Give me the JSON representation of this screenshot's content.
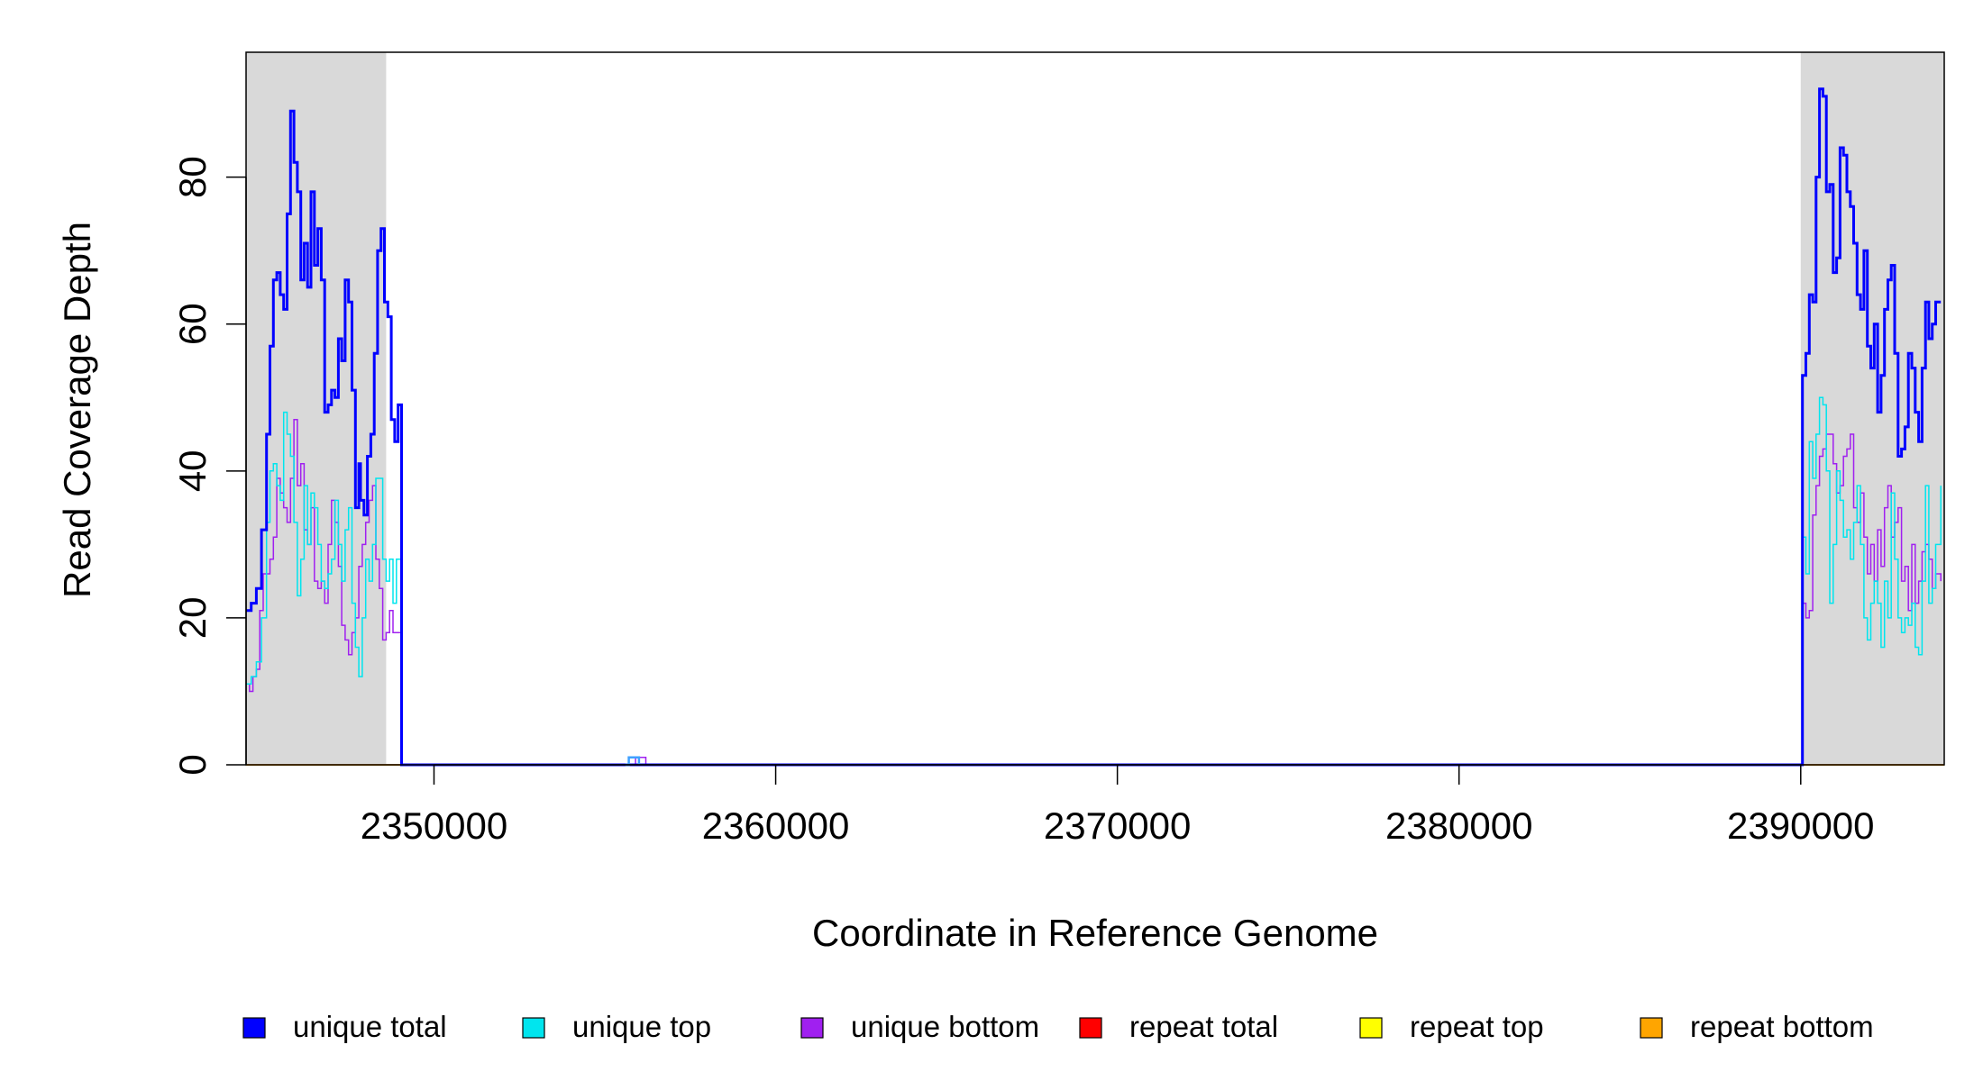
{
  "chart_data": {
    "type": "line",
    "title": "",
    "xlabel": "Coordinate in Reference Genome",
    "ylabel": "Read Coverage Depth",
    "xlim": [
      2344500,
      2394200
    ],
    "ylim": [
      0,
      97
    ],
    "x_ticks": [
      2350000,
      2360000,
      2370000,
      2380000,
      2390000
    ],
    "x_tick_labels": [
      "2350000",
      "2360000",
      "2370000",
      "2380000",
      "2390000"
    ],
    "y_ticks": [
      0,
      20,
      40,
      60,
      80
    ],
    "y_tick_labels": [
      "0",
      "20",
      "40",
      "60",
      "80"
    ],
    "grid": false,
    "legend_position": "bottom",
    "shaded_regions": [
      {
        "x_start": 2344500,
        "x_end": 2348600,
        "color": "#d9d9d9"
      },
      {
        "x_start": 2390000,
        "x_end": 2394200,
        "color": "#d9d9d9"
      }
    ],
    "series": [
      {
        "name": "unique total",
        "color": "#0000ff",
        "width": 3,
        "points": [
          [
            2344500,
            21
          ],
          [
            2344650,
            22
          ],
          [
            2344800,
            24
          ],
          [
            2344950,
            32
          ],
          [
            2345100,
            45
          ],
          [
            2345200,
            57
          ],
          [
            2345300,
            66
          ],
          [
            2345400,
            67
          ],
          [
            2345500,
            64
          ],
          [
            2345600,
            62
          ],
          [
            2345700,
            75
          ],
          [
            2345800,
            89
          ],
          [
            2345900,
            82
          ],
          [
            2346000,
            78
          ],
          [
            2346100,
            66
          ],
          [
            2346200,
            71
          ],
          [
            2346300,
            65
          ],
          [
            2346400,
            78
          ],
          [
            2346500,
            68
          ],
          [
            2346600,
            73
          ],
          [
            2346700,
            66
          ],
          [
            2346800,
            48
          ],
          [
            2346900,
            49
          ],
          [
            2347000,
            51
          ],
          [
            2347100,
            50
          ],
          [
            2347200,
            58
          ],
          [
            2347300,
            55
          ],
          [
            2347400,
            66
          ],
          [
            2347500,
            63
          ],
          [
            2347600,
            51
          ],
          [
            2347700,
            35
          ],
          [
            2347800,
            41
          ],
          [
            2347850,
            36
          ],
          [
            2347950,
            34
          ],
          [
            2348050,
            42
          ],
          [
            2348150,
            45
          ],
          [
            2348250,
            56
          ],
          [
            2348350,
            70
          ],
          [
            2348450,
            73
          ],
          [
            2348550,
            63
          ],
          [
            2348650,
            61
          ],
          [
            2348750,
            47
          ],
          [
            2348850,
            44
          ],
          [
            2348950,
            49
          ],
          [
            2349050,
            0
          ],
          [
            2390000,
            0
          ],
          [
            2390050,
            53
          ],
          [
            2390150,
            56
          ],
          [
            2390250,
            64
          ],
          [
            2390350,
            63
          ],
          [
            2390450,
            80
          ],
          [
            2390550,
            92
          ],
          [
            2390650,
            91
          ],
          [
            2390750,
            78
          ],
          [
            2390850,
            79
          ],
          [
            2390950,
            67
          ],
          [
            2391050,
            69
          ],
          [
            2391150,
            84
          ],
          [
            2391250,
            83
          ],
          [
            2391350,
            78
          ],
          [
            2391450,
            76
          ],
          [
            2391550,
            71
          ],
          [
            2391650,
            64
          ],
          [
            2391750,
            62
          ],
          [
            2391850,
            70
          ],
          [
            2391950,
            57
          ],
          [
            2392050,
            54
          ],
          [
            2392150,
            60
          ],
          [
            2392250,
            48
          ],
          [
            2392350,
            53
          ],
          [
            2392450,
            62
          ],
          [
            2392550,
            66
          ],
          [
            2392650,
            68
          ],
          [
            2392750,
            56
          ],
          [
            2392850,
            42
          ],
          [
            2392950,
            43
          ],
          [
            2393050,
            46
          ],
          [
            2393150,
            56
          ],
          [
            2393250,
            54
          ],
          [
            2393350,
            48
          ],
          [
            2393450,
            44
          ],
          [
            2393550,
            54
          ],
          [
            2393650,
            63
          ],
          [
            2393750,
            58
          ],
          [
            2393850,
            60
          ],
          [
            2393950,
            63
          ],
          [
            2394100,
            63
          ]
        ]
      },
      {
        "name": "unique top",
        "color": "#00e5ee",
        "width": 1.5,
        "points": [
          [
            2344500,
            11
          ],
          [
            2344650,
            12
          ],
          [
            2344800,
            14
          ],
          [
            2344950,
            20
          ],
          [
            2345100,
            33
          ],
          [
            2345200,
            40
          ],
          [
            2345300,
            41
          ],
          [
            2345400,
            38
          ],
          [
            2345500,
            36
          ],
          [
            2345600,
            48
          ],
          [
            2345700,
            45
          ],
          [
            2345800,
            42
          ],
          [
            2345900,
            33
          ],
          [
            2346000,
            23
          ],
          [
            2346100,
            28
          ],
          [
            2346200,
            38
          ],
          [
            2346300,
            30
          ],
          [
            2346400,
            37
          ],
          [
            2346500,
            35
          ],
          [
            2346600,
            30
          ],
          [
            2346700,
            25
          ],
          [
            2346800,
            24
          ],
          [
            2346900,
            26
          ],
          [
            2347000,
            28
          ],
          [
            2347100,
            36
          ],
          [
            2347200,
            30
          ],
          [
            2347300,
            25
          ],
          [
            2347400,
            32
          ],
          [
            2347500,
            35
          ],
          [
            2347600,
            22
          ],
          [
            2347700,
            16
          ],
          [
            2347800,
            12
          ],
          [
            2347900,
            20
          ],
          [
            2348000,
            28
          ],
          [
            2348100,
            25
          ],
          [
            2348200,
            30
          ],
          [
            2348300,
            39
          ],
          [
            2348400,
            39
          ],
          [
            2348500,
            28
          ],
          [
            2348600,
            25
          ],
          [
            2348700,
            28
          ],
          [
            2348800,
            22
          ],
          [
            2348900,
            28
          ],
          [
            2349050,
            0
          ],
          [
            2390000,
            0
          ],
          [
            2390050,
            31
          ],
          [
            2390150,
            26
          ],
          [
            2390250,
            44
          ],
          [
            2390350,
            39
          ],
          [
            2390450,
            45
          ],
          [
            2390550,
            50
          ],
          [
            2390650,
            49
          ],
          [
            2390750,
            40
          ],
          [
            2390850,
            22
          ],
          [
            2390950,
            30
          ],
          [
            2391050,
            40
          ],
          [
            2391150,
            36
          ],
          [
            2391250,
            31
          ],
          [
            2391350,
            32
          ],
          [
            2391450,
            28
          ],
          [
            2391550,
            33
          ],
          [
            2391650,
            38
          ],
          [
            2391750,
            30
          ],
          [
            2391850,
            20
          ],
          [
            2391950,
            17
          ],
          [
            2392050,
            22
          ],
          [
            2392150,
            25
          ],
          [
            2392250,
            22
          ],
          [
            2392350,
            16
          ],
          [
            2392450,
            25
          ],
          [
            2392550,
            20
          ],
          [
            2392650,
            37
          ],
          [
            2392750,
            28
          ],
          [
            2392850,
            20
          ],
          [
            2392950,
            18
          ],
          [
            2393050,
            20
          ],
          [
            2393150,
            19
          ],
          [
            2393250,
            22
          ],
          [
            2393350,
            16
          ],
          [
            2393450,
            15
          ],
          [
            2393550,
            25
          ],
          [
            2393650,
            38
          ],
          [
            2393750,
            22
          ],
          [
            2393850,
            24
          ],
          [
            2393950,
            30
          ],
          [
            2394100,
            38
          ]
        ]
      },
      {
        "name": "unique bottom",
        "color": "#a020f0",
        "width": 1.5,
        "points": [
          [
            2344500,
            11
          ],
          [
            2344600,
            10
          ],
          [
            2344700,
            12
          ],
          [
            2344800,
            13
          ],
          [
            2344900,
            21
          ],
          [
            2345000,
            26
          ],
          [
            2345100,
            26
          ],
          [
            2345200,
            28
          ],
          [
            2345300,
            31
          ],
          [
            2345400,
            39
          ],
          [
            2345500,
            37
          ],
          [
            2345600,
            35
          ],
          [
            2345700,
            33
          ],
          [
            2345800,
            39
          ],
          [
            2345900,
            47
          ],
          [
            2346000,
            38
          ],
          [
            2346100,
            41
          ],
          [
            2346200,
            32
          ],
          [
            2346300,
            30
          ],
          [
            2346400,
            35
          ],
          [
            2346500,
            25
          ],
          [
            2346600,
            24
          ],
          [
            2346700,
            25
          ],
          [
            2346800,
            22
          ],
          [
            2346900,
            30
          ],
          [
            2347000,
            36
          ],
          [
            2347100,
            33
          ],
          [
            2347200,
            27
          ],
          [
            2347300,
            19
          ],
          [
            2347400,
            17
          ],
          [
            2347500,
            15
          ],
          [
            2347600,
            18
          ],
          [
            2347700,
            20
          ],
          [
            2347800,
            27
          ],
          [
            2347900,
            30
          ],
          [
            2348000,
            33
          ],
          [
            2348100,
            36
          ],
          [
            2348200,
            38
          ],
          [
            2348300,
            28
          ],
          [
            2348400,
            24
          ],
          [
            2348500,
            17
          ],
          [
            2348600,
            18
          ],
          [
            2348700,
            21
          ],
          [
            2348800,
            18
          ],
          [
            2349050,
            0
          ],
          [
            2355700,
            0
          ],
          [
            2355900,
            1
          ],
          [
            2356100,
            1
          ],
          [
            2356200,
            0
          ],
          [
            2390000,
            0
          ],
          [
            2390050,
            22
          ],
          [
            2390150,
            20
          ],
          [
            2390250,
            21
          ],
          [
            2390350,
            34
          ],
          [
            2390450,
            38
          ],
          [
            2390550,
            42
          ],
          [
            2390650,
            43
          ],
          [
            2390750,
            45
          ],
          [
            2390850,
            45
          ],
          [
            2390950,
            41
          ],
          [
            2391050,
            37
          ],
          [
            2391150,
            38
          ],
          [
            2391250,
            42
          ],
          [
            2391350,
            43
          ],
          [
            2391450,
            45
          ],
          [
            2391550,
            35
          ],
          [
            2391650,
            33
          ],
          [
            2391750,
            37
          ],
          [
            2391850,
            31
          ],
          [
            2391950,
            26
          ],
          [
            2392050,
            30
          ],
          [
            2392150,
            25
          ],
          [
            2392250,
            32
          ],
          [
            2392350,
            27
          ],
          [
            2392450,
            35
          ],
          [
            2392550,
            38
          ],
          [
            2392650,
            31
          ],
          [
            2392750,
            33
          ],
          [
            2392850,
            35
          ],
          [
            2392950,
            25
          ],
          [
            2393050,
            27
          ],
          [
            2393150,
            21
          ],
          [
            2393250,
            30
          ],
          [
            2393350,
            22
          ],
          [
            2393450,
            25
          ],
          [
            2393550,
            29
          ],
          [
            2393650,
            30
          ],
          [
            2393750,
            28
          ],
          [
            2393850,
            24
          ],
          [
            2393950,
            26
          ],
          [
            2394100,
            25
          ]
        ]
      },
      {
        "name": "repeat total",
        "color": "#ff0000",
        "width": 2,
        "points": [
          [
            2344500,
            0
          ],
          [
            2394200,
            0
          ]
        ]
      },
      {
        "name": "repeat top",
        "color": "#ffff00",
        "width": 2,
        "points": [
          [
            2344500,
            0
          ],
          [
            2394200,
            0
          ]
        ]
      },
      {
        "name": "repeat bottom",
        "color": "#ffa500",
        "width": 2,
        "points": [
          [
            2344500,
            0
          ],
          [
            2394200,
            0
          ]
        ]
      }
    ],
    "small_markers": [
      {
        "series": "unique top",
        "color": "#3fa0ff",
        "points": [
          [
            2355600,
            0
          ],
          [
            2355700,
            1
          ],
          [
            2355900,
            1
          ],
          [
            2356000,
            0
          ]
        ]
      }
    ]
  },
  "legend": [
    {
      "label": "unique total",
      "color": "#0000ff"
    },
    {
      "label": "unique top",
      "color": "#00e5ee"
    },
    {
      "label": "unique bottom",
      "color": "#a020f0"
    },
    {
      "label": "repeat total",
      "color": "#ff0000"
    },
    {
      "label": "repeat top",
      "color": "#ffff00"
    },
    {
      "label": "repeat bottom",
      "color": "#ffa500"
    }
  ]
}
